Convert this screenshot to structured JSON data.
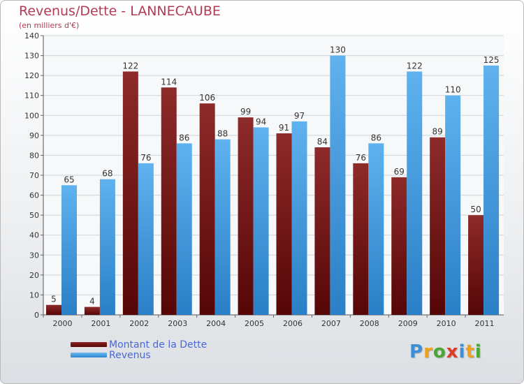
{
  "chart_data": {
    "type": "bar",
    "title": "Revenus/Dette - LANNECAUBE",
    "subtitle": "(en milliers d'€)",
    "categories": [
      "2000",
      "2001",
      "2002",
      "2003",
      "2004",
      "2005",
      "2006",
      "2007",
      "2008",
      "2009",
      "2010",
      "2011"
    ],
    "series": [
      {
        "name": "Montant de la Dette",
        "color": "#7a1b1b",
        "values": [
          5,
          4,
          122,
          114,
          106,
          99,
          91,
          84,
          76,
          69,
          89,
          50
        ]
      },
      {
        "name": "Revenus",
        "color": "#4aa3e2",
        "values": [
          65,
          68,
          76,
          86,
          88,
          94,
          97,
          130,
          86,
          122,
          110,
          125
        ]
      }
    ],
    "ylim": [
      0,
      140
    ],
    "yticks": [
      0,
      10,
      20,
      30,
      40,
      50,
      60,
      70,
      80,
      90,
      100,
      110,
      120,
      130,
      140
    ],
    "grid": true,
    "legend_position": "bottom-left"
  },
  "logo": {
    "letters": [
      "P",
      "r",
      "o",
      "x",
      "i",
      "t",
      "i"
    ],
    "colors": [
      "#3a8fd6",
      "#f0a020",
      "#4aa832",
      "#e23a2a",
      "#3a8fd6",
      "#f0a020",
      "#4aa832"
    ]
  }
}
